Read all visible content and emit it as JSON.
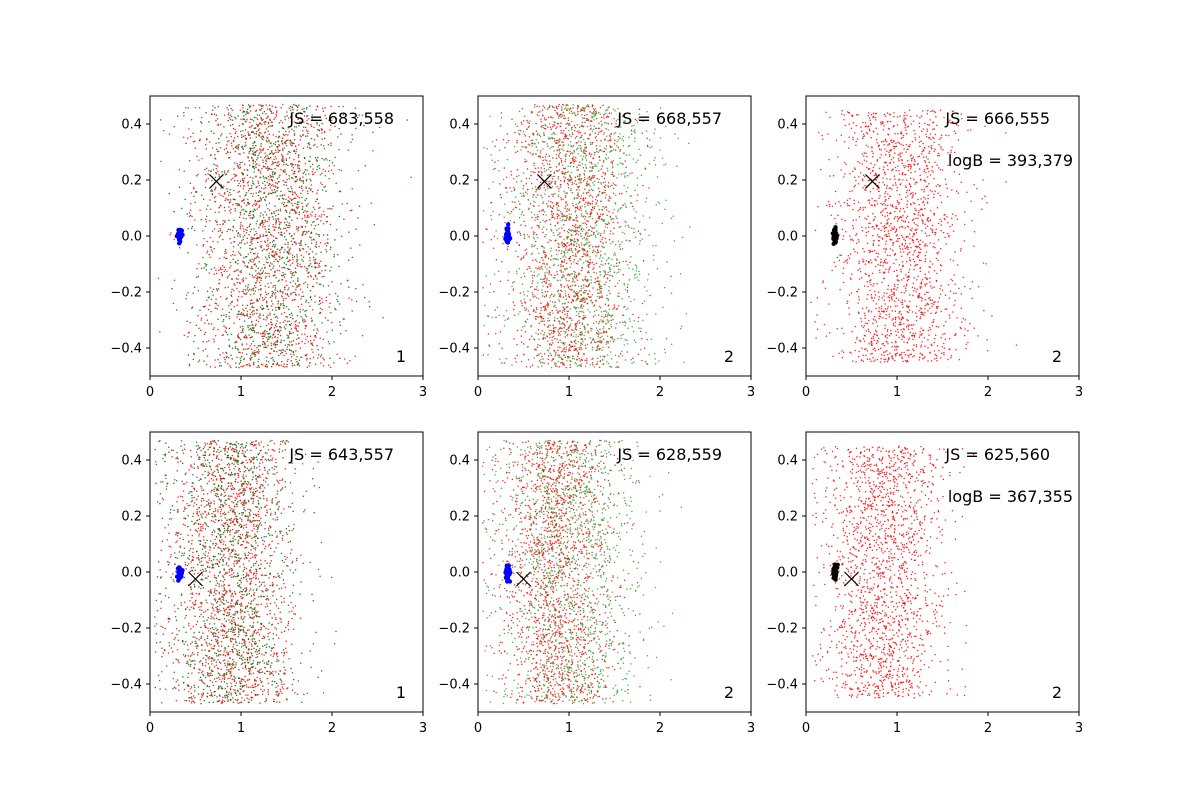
{
  "chart_data": [
    {
      "type": "scatter",
      "xlim": [
        0,
        3
      ],
      "ylim": [
        -0.5,
        0.5
      ],
      "x_ticks": [
        0,
        1,
        2,
        3
      ],
      "y_ticks": [
        -0.4,
        -0.2,
        0.0,
        0.2,
        0.4
      ],
      "annotations": [
        "JS = 683,558"
      ],
      "corner_label": "1",
      "cross_marker": {
        "x": 0.73,
        "y": 0.195
      },
      "cluster": {
        "x": 0.33,
        "y": 0.0,
        "color": "#0000ff"
      },
      "series": [
        {
          "color": "#ff0000",
          "cloud": {
            "cx": 1.3,
            "sx": 0.42,
            "half_h": 0.47,
            "count": 1500
          }
        },
        {
          "color": "#006400",
          "cloud": {
            "cx": 1.3,
            "sx": 0.4,
            "half_h": 0.47,
            "count": 1300
          }
        }
      ]
    },
    {
      "type": "scatter",
      "xlim": [
        0,
        3
      ],
      "ylim": [
        -0.5,
        0.5
      ],
      "x_ticks": [
        0,
        1,
        2,
        3
      ],
      "y_ticks": [
        -0.4,
        -0.2,
        0.0,
        0.2,
        0.4
      ],
      "annotations": [
        "JS = 668,557"
      ],
      "corner_label": "2",
      "cross_marker": {
        "x": 0.73,
        "y": 0.195
      },
      "cluster": {
        "x": 0.32,
        "y": 0.0,
        "color": "#0000ff"
      },
      "series": [
        {
          "color": "#ff0000",
          "cloud": {
            "cx": 1.0,
            "sx": 0.33,
            "half_h": 0.47,
            "count": 1500
          }
        },
        {
          "color": "#2ca02c",
          "cloud": {
            "cx": 1.15,
            "sx": 0.42,
            "half_h": 0.47,
            "count": 1400
          }
        }
      ]
    },
    {
      "type": "scatter",
      "xlim": [
        0,
        3
      ],
      "ylim": [
        -0.5,
        0.5
      ],
      "x_ticks": [
        0,
        1,
        2,
        3
      ],
      "y_ticks": [
        -0.4,
        -0.2,
        0.0,
        0.2,
        0.4
      ],
      "annotations": [
        "JS = 666,555",
        "logB = 393,379"
      ],
      "corner_label": "2",
      "cross_marker": {
        "x": 0.73,
        "y": 0.195
      },
      "cluster": {
        "x": 0.32,
        "y": 0.0,
        "color": "#000000"
      },
      "series": [
        {
          "color": "#ff0000",
          "cloud": {
            "cx": 1.05,
            "sx": 0.36,
            "half_h": 0.45,
            "count": 1700
          }
        }
      ]
    },
    {
      "type": "scatter",
      "xlim": [
        0,
        3
      ],
      "ylim": [
        -0.5,
        0.5
      ],
      "x_ticks": [
        0,
        1,
        2,
        3
      ],
      "y_ticks": [
        -0.4,
        -0.2,
        0.0,
        0.2,
        0.4
      ],
      "annotations": [
        "JS = 643,557"
      ],
      "corner_label": "1",
      "cross_marker": {
        "x": 0.5,
        "y": -0.025
      },
      "cluster": {
        "x": 0.33,
        "y": 0.0,
        "color": "#0000ff"
      },
      "series": [
        {
          "color": "#ff0000",
          "cloud": {
            "cx": 0.9,
            "sx": 0.35,
            "half_h": 0.47,
            "count": 1500
          }
        },
        {
          "color": "#006400",
          "cloud": {
            "cx": 0.9,
            "sx": 0.35,
            "half_h": 0.47,
            "count": 1300
          }
        }
      ]
    },
    {
      "type": "scatter",
      "xlim": [
        0,
        3
      ],
      "ylim": [
        -0.5,
        0.5
      ],
      "x_ticks": [
        0,
        1,
        2,
        3
      ],
      "y_ticks": [
        -0.4,
        -0.2,
        0.0,
        0.2,
        0.4
      ],
      "annotations": [
        "JS = 628,559"
      ],
      "corner_label": "2",
      "cross_marker": {
        "x": 0.5,
        "y": -0.025
      },
      "cluster": {
        "x": 0.33,
        "y": 0.0,
        "color": "#0000ff"
      },
      "series": [
        {
          "color": "#ff0000",
          "cloud": {
            "cx": 0.85,
            "sx": 0.3,
            "half_h": 0.47,
            "count": 1500
          }
        },
        {
          "color": "#2ca02c",
          "cloud": {
            "cx": 1.0,
            "sx": 0.4,
            "half_h": 0.47,
            "count": 1400
          }
        }
      ]
    },
    {
      "type": "scatter",
      "xlim": [
        0,
        3
      ],
      "ylim": [
        -0.5,
        0.5
      ],
      "x_ticks": [
        0,
        1,
        2,
        3
      ],
      "y_ticks": [
        -0.4,
        -0.2,
        0.0,
        0.2,
        0.4
      ],
      "annotations": [
        "JS = 625,560",
        "logB = 367,355"
      ],
      "corner_label": "2",
      "cross_marker": {
        "x": 0.5,
        "y": -0.025
      },
      "cluster": {
        "x": 0.32,
        "y": 0.0,
        "color": "#000000"
      },
      "series": [
        {
          "color": "#ff0000",
          "cloud": {
            "cx": 0.85,
            "sx": 0.33,
            "half_h": 0.45,
            "count": 1700
          }
        }
      ]
    }
  ]
}
